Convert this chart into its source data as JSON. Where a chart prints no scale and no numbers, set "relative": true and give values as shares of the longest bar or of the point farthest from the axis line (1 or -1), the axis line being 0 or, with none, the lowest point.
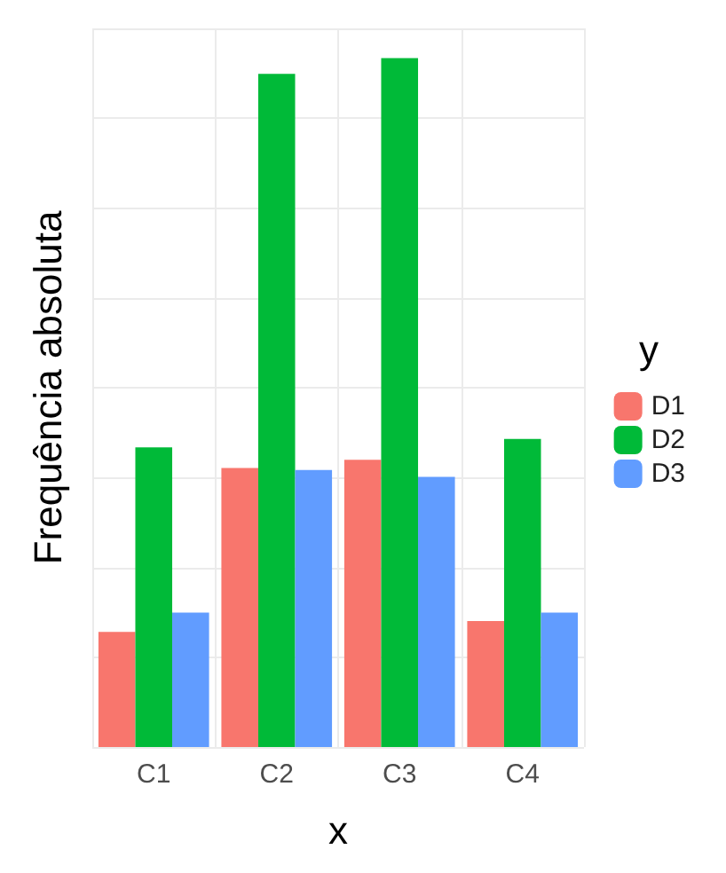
{
  "chart_data": {
    "type": "bar",
    "relative": true,
    "xlabel": "x",
    "ylabel": "Frequência absoluta",
    "legend_title": "y",
    "legend": "right",
    "grid": true,
    "categories": [
      "C1",
      "C2",
      "C3",
      "C4"
    ],
    "series": [
      {
        "name": "D1",
        "color": "#f8766d",
        "values": [
          0.167,
          0.405,
          0.417,
          0.183
        ]
      },
      {
        "name": "D2",
        "color": "#00ba38",
        "values": [
          0.435,
          0.977,
          1,
          0.447
        ]
      },
      {
        "name": "D3",
        "color": "#619cff",
        "values": [
          0.195,
          0.402,
          0.392,
          0.195
        ]
      }
    ]
  }
}
